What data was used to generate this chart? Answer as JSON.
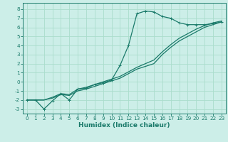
{
  "bg_color": "#cceee8",
  "grid_color": "#aaddcc",
  "line_color": "#1a7a6a",
  "xlabel": "Humidex (Indice chaleur)",
  "xlim": [
    -0.5,
    23.5
  ],
  "ylim": [
    -3.5,
    8.7
  ],
  "yticks": [
    -3,
    -2,
    -1,
    0,
    1,
    2,
    3,
    4,
    5,
    6,
    7,
    8
  ],
  "xticks": [
    0,
    1,
    2,
    3,
    4,
    5,
    6,
    7,
    8,
    9,
    10,
    11,
    12,
    13,
    14,
    15,
    16,
    17,
    18,
    19,
    20,
    21,
    22,
    23
  ],
  "curve1_x": [
    0,
    1,
    2,
    3,
    4,
    5,
    6,
    7,
    8,
    9,
    10,
    11,
    12,
    13,
    14,
    15,
    16,
    17,
    18,
    19,
    20,
    21,
    22,
    23
  ],
  "curve1_y": [
    -2.0,
    -2.0,
    -3.0,
    -2.1,
    -1.3,
    -2.0,
    -0.8,
    -0.7,
    -0.3,
    -0.1,
    0.2,
    1.8,
    4.0,
    7.5,
    7.8,
    7.7,
    7.2,
    7.0,
    6.5,
    6.3,
    6.3,
    6.3,
    6.4,
    6.6
  ],
  "curve2_x": [
    0,
    1,
    2,
    3,
    4,
    5,
    6,
    7,
    8,
    9,
    10,
    11,
    12,
    13,
    14,
    15,
    16,
    17,
    18,
    19,
    20,
    21,
    22,
    23
  ],
  "curve2_y": [
    -2.0,
    -2.0,
    -2.0,
    -1.8,
    -1.4,
    -1.5,
    -1.0,
    -0.8,
    -0.5,
    -0.2,
    0.1,
    0.4,
    0.9,
    1.4,
    1.7,
    2.0,
    3.0,
    3.8,
    4.5,
    5.0,
    5.5,
    6.0,
    6.3,
    6.6
  ],
  "curve3_x": [
    0,
    1,
    2,
    3,
    4,
    5,
    6,
    7,
    8,
    9,
    10,
    11,
    12,
    13,
    14,
    15,
    16,
    17,
    18,
    19,
    20,
    21,
    22,
    23
  ],
  "curve3_y": [
    -2.0,
    -2.0,
    -2.0,
    -1.7,
    -1.3,
    -1.4,
    -0.8,
    -0.6,
    -0.3,
    0.0,
    0.3,
    0.6,
    1.1,
    1.6,
    2.0,
    2.4,
    3.3,
    4.1,
    4.8,
    5.3,
    5.8,
    6.2,
    6.5,
    6.7
  ],
  "marker_size": 2.5,
  "linewidth": 0.9,
  "tick_labelsize": 5.2,
  "xlabel_fontsize": 6.5
}
